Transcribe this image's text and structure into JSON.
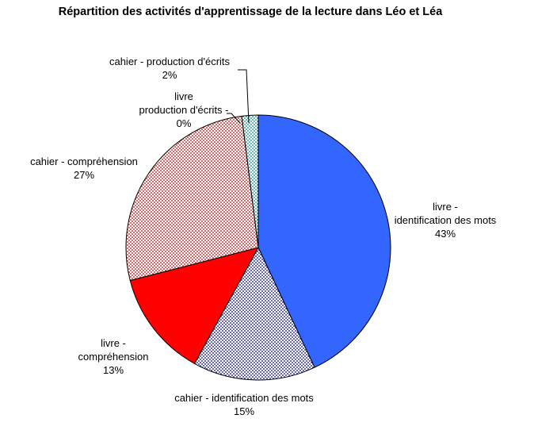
{
  "chart_data": {
    "type": "pie",
    "title": "Répartition des activités d'apprentissage de la lecture dans Léo et Léa",
    "start_angle_deg": 0,
    "direction": "clockwise",
    "slices": [
      {
        "label_lines": [
          "livre -",
          "identification des mots"
        ],
        "percent_label": "43%",
        "value": 43,
        "color": "#3366ff",
        "pattern": "solid"
      },
      {
        "label_lines": [
          "cahier - identification des mots"
        ],
        "percent_label": "15%",
        "value": 15,
        "color": "#000080",
        "pattern": "dots"
      },
      {
        "label_lines": [
          "livre -",
          "compréhension"
        ],
        "percent_label": "13%",
        "value": 13,
        "color": "#ff0000",
        "pattern": "solid"
      },
      {
        "label_lines": [
          "cahier - compréhension"
        ],
        "percent_label": "27%",
        "value": 27,
        "color": "#c00000",
        "pattern": "dots"
      },
      {
        "label_lines": [
          "livre",
          "production d'écrits -"
        ],
        "percent_label": "0%",
        "value": 0,
        "color": "#ff99cc",
        "pattern": "solid"
      },
      {
        "label_lines": [
          "cahier - production d'écrits"
        ],
        "percent_label": "2%",
        "value": 2,
        "color": "#008080",
        "pattern": "dots"
      }
    ]
  }
}
